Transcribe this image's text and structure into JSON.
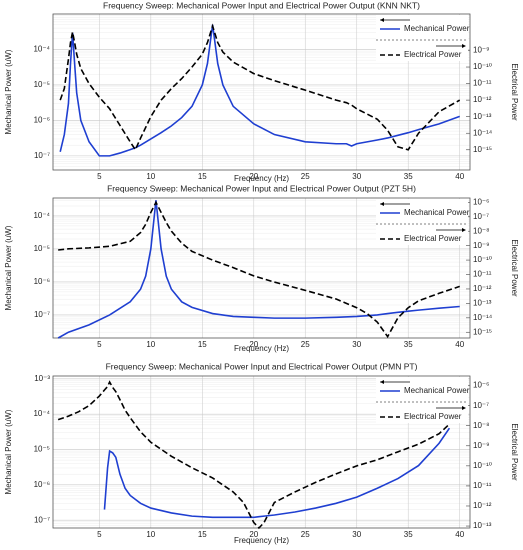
{
  "chart_data": [
    {
      "type": "line",
      "title": "Frequency Sweep: Mechanical Power Input and Electrical Power Output (KNN NKT)",
      "xlabel": "Frequency (Hz)",
      "ylabel": "Mechanical Power (uW)",
      "y2label": "Electrical Power",
      "log_y": true,
      "log_y2": true,
      "grid": true,
      "legend": "upper right",
      "xlim": [
        0.5,
        41
      ],
      "xticks": [
        5,
        10,
        15,
        20,
        25,
        30,
        35,
        40
      ],
      "ylim": [
        4e-08,
        0.001
      ],
      "yticks": [
        {
          "value": 1e-07,
          "label": "10⁻⁷"
        },
        {
          "value": 1e-06,
          "label": "10⁻⁶"
        },
        {
          "value": 1e-05,
          "label": "10⁻⁵"
        },
        {
          "value": 0.0001,
          "label": "10⁻⁴"
        }
      ],
      "y2lim": [
        6e-17,
        1.6e-07
      ],
      "y2ticks": [
        {
          "value": 1e-15,
          "label": "10⁻¹⁵"
        },
        {
          "value": 1e-14,
          "label": "10⁻¹⁴"
        },
        {
          "value": 1e-13,
          "label": "10⁻¹³"
        },
        {
          "value": 1e-12,
          "label": "10⁻¹²"
        },
        {
          "value": 1e-11,
          "label": "10⁻¹¹"
        },
        {
          "value": 1e-10,
          "label": "10⁻¹⁰"
        },
        {
          "value": 1e-09,
          "label": "10⁻⁹"
        }
      ],
      "x": [
        1.2,
        1.6,
        2,
        2.2,
        2.4,
        2.6,
        2.8,
        3.2,
        4,
        5,
        6,
        7,
        8,
        8.5,
        9,
        10,
        11,
        12,
        13,
        14,
        15,
        15.5,
        16,
        16.5,
        17,
        18,
        20,
        22,
        25,
        28,
        29,
        29.5,
        30,
        32,
        33,
        34,
        35,
        36,
        38,
        40
      ],
      "series": [
        {
          "name": "Mechanical Power",
          "color": "#1f3fd1",
          "dash": false,
          "axis": "y",
          "values": [
            1.3e-07,
            4e-07,
            3e-06,
            4e-05,
            0.0003,
            4e-05,
            6e-06,
            1e-06,
            2.5e-07,
            1e-07,
            1e-07,
            1.2e-07,
            1.5e-07,
            1.7e-07,
            2e-07,
            3e-07,
            4.5e-07,
            7e-07,
            1.2e-06,
            2.5e-06,
            1e-05,
            4e-05,
            0.0005,
            4e-05,
            1e-05,
            2.5e-06,
            8e-07,
            4e-07,
            2.5e-07,
            2.2e-07,
            2.2e-07,
            1.9e-07,
            2.2e-07,
            2.8e-07,
            3.2e-07,
            3.8e-07,
            4.5e-07,
            5.5e-07,
            8e-07,
            1.3e-06
          ]
        },
        {
          "name": "Electrical Power",
          "color": "#000000",
          "dash": true,
          "axis": "y2",
          "values": [
            1e-12,
            5e-12,
            3e-10,
            3e-09,
            1.3e-08,
            3e-09,
            6e-10,
            8e-11,
            1e-11,
            1.5e-12,
            3e-13,
            3e-14,
            3e-15,
            1e-15,
            5e-15,
            1e-13,
            1e-12,
            5e-12,
            2e-11,
            1e-10,
            6e-10,
            3e-09,
            3e-08,
            3e-09,
            8e-10,
            2e-10,
            4e-11,
            1.5e-11,
            4e-12,
            1e-12,
            7e-13,
            5e-13,
            3e-13,
            7e-14,
            1.5e-14,
            1.5e-15,
            1e-15,
            1e-14,
            2e-13,
            1e-12
          ]
        }
      ]
    },
    {
      "type": "line",
      "title": "Frequency Sweep: Mechanical Power Input and Electrical Power Output (PZT 5H)",
      "xlabel": "Frequency (Hz)",
      "ylabel": "Mechanical Power (uW)",
      "y2label": "Electrical Power",
      "log_y": true,
      "log_y2": true,
      "grid": true,
      "legend": "upper right",
      "xlim": [
        0.5,
        41
      ],
      "xticks": [
        5,
        10,
        15,
        20,
        25,
        30,
        35,
        40
      ],
      "ylim": [
        2e-08,
        0.00035
      ],
      "yticks": [
        {
          "value": 1e-07,
          "label": "10⁻⁷"
        },
        {
          "value": 1e-06,
          "label": "10⁻⁶"
        },
        {
          "value": 1e-05,
          "label": "10⁻⁵"
        },
        {
          "value": 0.0001,
          "label": "10⁻⁴"
        }
      ],
      "y2lim": [
        4e-16,
        2e-06
      ],
      "y2ticks": [
        {
          "value": 1e-15,
          "label": "10⁻¹⁵"
        },
        {
          "value": 1e-14,
          "label": "10⁻¹⁴"
        },
        {
          "value": 1e-13,
          "label": "10⁻¹³"
        },
        {
          "value": 1e-12,
          "label": "10⁻¹²"
        },
        {
          "value": 1e-11,
          "label": "10⁻¹¹"
        },
        {
          "value": 1e-10,
          "label": "10⁻¹⁰"
        },
        {
          "value": 1e-09,
          "label": "10⁻⁹"
        },
        {
          "value": 1e-08,
          "label": "10⁻⁸"
        },
        {
          "value": 1e-07,
          "label": "10⁻⁷"
        },
        {
          "value": 1e-06,
          "label": "10⁻⁶"
        }
      ],
      "x": [
        1,
        2,
        4,
        6,
        8,
        9,
        9.5,
        10,
        10.5,
        11,
        11.5,
        12,
        13,
        14,
        16,
        18,
        20,
        22,
        25,
        28,
        30,
        31,
        32,
        33,
        34,
        35,
        36,
        38,
        40
      ],
      "series": [
        {
          "name": "Mechanical Power",
          "color": "#1f3fd1",
          "dash": false,
          "axis": "y",
          "values": [
            2e-08,
            3e-08,
            5e-08,
            1e-07,
            2.5e-07,
            6e-07,
            1.5e-06,
            1e-05,
            0.0003,
            1e-05,
            1.5e-06,
            6e-07,
            2.5e-07,
            1.7e-07,
            1.1e-07,
            9e-08,
            8.5e-08,
            8e-08,
            8e-08,
            8.5e-08,
            9e-08,
            9.5e-08,
            1e-07,
            1.1e-07,
            1.2e-07,
            1.3e-07,
            1.4e-07,
            1.6e-07,
            1.8e-07
          ]
        },
        {
          "name": "Electrical Power",
          "color": "#000000",
          "dash": true,
          "axis": "y2",
          "values": [
            5e-10,
            6e-10,
            7e-10,
            9e-10,
            2e-09,
            8e-09,
            3e-08,
            2e-07,
            1e-06,
            2e-07,
            4e-08,
            1e-08,
            1.5e-09,
            4e-10,
            1e-10,
            3e-11,
            8e-12,
            3e-12,
            8e-13,
            2e-13,
            5e-14,
            2e-14,
            5e-15,
            5e-16,
            1e-14,
            5e-14,
            1.5e-13,
            5e-13,
            1.5e-12
          ]
        }
      ]
    },
    {
      "type": "line",
      "title": "Frequency Sweep: Mechanical Power Input and Electrical Power Output (PMN PT)",
      "xlabel": "Frequency (Hz)",
      "ylabel": "Mechanical Power (uW)",
      "y2label": "Electrical Power",
      "log_y": true,
      "log_y2": true,
      "grid": true,
      "legend": "upper right",
      "xlim": [
        0.5,
        41
      ],
      "xticks": [
        5,
        10,
        15,
        20,
        25,
        30,
        35,
        40
      ],
      "ylim": [
        6e-08,
        0.0012
      ],
      "yticks": [
        {
          "value": 1e-07,
          "label": "10⁻⁷"
        },
        {
          "value": 1e-06,
          "label": "10⁻⁶"
        },
        {
          "value": 1e-05,
          "label": "10⁻⁵"
        },
        {
          "value": 0.0001,
          "label": "10⁻⁴"
        },
        {
          "value": 0.001,
          "label": "10⁻³"
        }
      ],
      "y2lim": [
        8e-14,
        3e-06
      ],
      "y2ticks": [
        {
          "value": 1e-13,
          "label": "10⁻¹³"
        },
        {
          "value": 1e-12,
          "label": "10⁻¹²"
        },
        {
          "value": 1e-11,
          "label": "10⁻¹¹"
        },
        {
          "value": 1e-10,
          "label": "10⁻¹⁰"
        },
        {
          "value": 1e-09,
          "label": "10⁻⁹"
        },
        {
          "value": 1e-08,
          "label": "10⁻⁸"
        },
        {
          "value": 1e-07,
          "label": "10⁻⁷"
        },
        {
          "value": 1e-06,
          "label": "10⁻⁶"
        }
      ],
      "x": [
        1,
        2,
        3,
        4,
        5,
        5.5,
        5.8,
        6,
        6.3,
        6.6,
        7,
        7.5,
        8,
        9,
        10,
        12,
        14,
        16,
        18,
        19,
        20,
        20.5,
        21,
        22,
        24,
        26,
        28,
        30,
        32,
        34,
        36,
        38,
        39
      ],
      "series": [
        {
          "name": "Mechanical Power",
          "color": "#1f3fd1",
          "dash": false,
          "axis": "y",
          "values": [
            null,
            null,
            null,
            null,
            null,
            2e-07,
            3e-06,
            9e-06,
            8e-06,
            6e-06,
            2e-06,
            8e-07,
            5e-07,
            3e-07,
            2.2e-07,
            1.6e-07,
            1.3e-07,
            1.2e-07,
            1.2e-07,
            1.2e-07,
            1.2e-07,
            1.25e-07,
            1.3e-07,
            1.4e-07,
            1.7e-07,
            2.2e-07,
            3e-07,
            4.5e-07,
            8e-07,
            1.5e-06,
            3.5e-06,
            1.5e-05,
            4e-05
          ]
        },
        {
          "name": "Electrical Power",
          "color": "#000000",
          "dash": true,
          "axis": "y2",
          "values": [
            2e-08,
            3e-08,
            5e-08,
            1e-07,
            3e-07,
            6e-07,
            9e-07,
            1.5e-06,
            8e-07,
            5e-07,
            2e-07,
            6e-08,
            2.5e-08,
            5e-09,
            1.5e-09,
            3e-10,
            8e-11,
            2.5e-11,
            5e-12,
            1.5e-12,
            1.5e-13,
            8e-14,
            1.5e-13,
            1.5e-12,
            5e-12,
            1.5e-11,
            4e-11,
            1e-10,
            2e-10,
            5e-10,
            1.2e-09,
            4e-09,
            1.2e-08
          ]
        }
      ]
    }
  ]
}
